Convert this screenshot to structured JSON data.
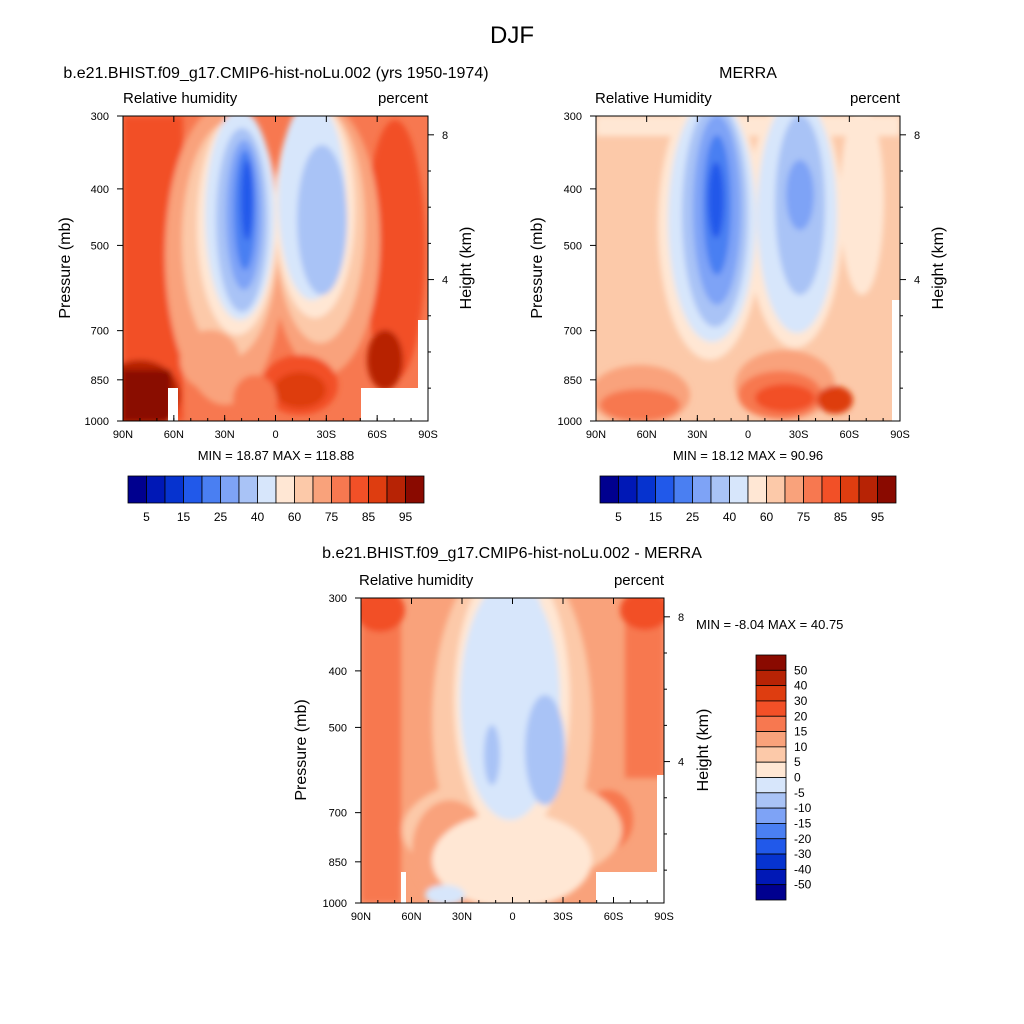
{
  "page_title": "DJF",
  "color_scales": {
    "rh": {
      "colors": [
        "#00008f",
        "#0018b6",
        "#0633cf",
        "#2159ea",
        "#4a7ff2",
        "#7ea3f6",
        "#a9c3f6",
        "#d7e6fb",
        "#ffe7d4",
        "#fcc9a9",
        "#f9a27b",
        "#f77850",
        "#f25027",
        "#de3d10",
        "#b72305",
        "#8a0a00"
      ],
      "labels": [
        "5",
        "15",
        "25",
        "40",
        "60",
        "75",
        "85",
        "95"
      ]
    },
    "diff": {
      "colors": [
        "#00008f",
        "#0018b6",
        "#0633cf",
        "#2159ea",
        "#4a7ff2",
        "#7ea3f6",
        "#a9c3f6",
        "#d7e6fb",
        "#ffe7d4",
        "#fcc9a9",
        "#f9a27b",
        "#f77850",
        "#f25027",
        "#de3d10",
        "#b72305",
        "#8a0a00"
      ],
      "labels": [
        "-50",
        "-40",
        "-30",
        "-20",
        "-15",
        "-10",
        "-5",
        "0",
        "5",
        "10",
        "15",
        "20",
        "30",
        "40",
        "50"
      ]
    }
  },
  "chart_data": [
    {
      "type": "heatmap",
      "title": "b.e21.BHIST.f09_g17.CMIP6-hist-noLu.002 (yrs 1950-1974)",
      "left_string": "Relative humidity",
      "right_string": "percent",
      "xlabel": "",
      "ylabel": "Pressure (mb)",
      "ylabel_right": "Height (km)",
      "x_ticks": [
        "90N",
        "60N",
        "30N",
        "0",
        "30S",
        "60S",
        "90S"
      ],
      "y_ticks": [
        "300",
        "400",
        "500",
        "700",
        "850",
        "1000"
      ],
      "y_right_ticks": [
        "8",
        "4"
      ],
      "y_scale": "log",
      "min_max_text": "MIN =  18.87  MAX = 118.88",
      "min": 18.87,
      "max": 118.88,
      "colorbar": "rh"
    },
    {
      "type": "heatmap",
      "title": "MERRA",
      "left_string": "Relative Humidity",
      "right_string": "percent",
      "xlabel": "",
      "ylabel": "Pressure (mb)",
      "ylabel_right": "Height (km)",
      "x_ticks": [
        "90N",
        "60N",
        "30N",
        "0",
        "30S",
        "60S",
        "90S"
      ],
      "y_ticks": [
        "300",
        "400",
        "500",
        "700",
        "850",
        "1000"
      ],
      "y_right_ticks": [
        "8",
        "4"
      ],
      "y_scale": "log",
      "min_max_text": "MIN =  18.12  MAX =  90.96",
      "min": 18.12,
      "max": 90.96,
      "colorbar": "rh"
    },
    {
      "type": "heatmap",
      "title": "b.e21.BHIST.f09_g17.CMIP6-hist-noLu.002 - MERRA",
      "left_string": "Relative humidity",
      "right_string": "percent",
      "xlabel": "",
      "ylabel": "Pressure (mb)",
      "ylabel_right": "Height (km)",
      "x_ticks": [
        "90N",
        "60N",
        "30N",
        "0",
        "30S",
        "60S",
        "90S"
      ],
      "y_ticks": [
        "300",
        "400",
        "500",
        "700",
        "850",
        "1000"
      ],
      "y_right_ticks": [
        "8",
        "4"
      ],
      "y_scale": "log",
      "min_max_text": "MIN =  -8.04  MAX =  40.75",
      "min": -8.04,
      "max": 40.75,
      "colorbar": "diff"
    }
  ]
}
